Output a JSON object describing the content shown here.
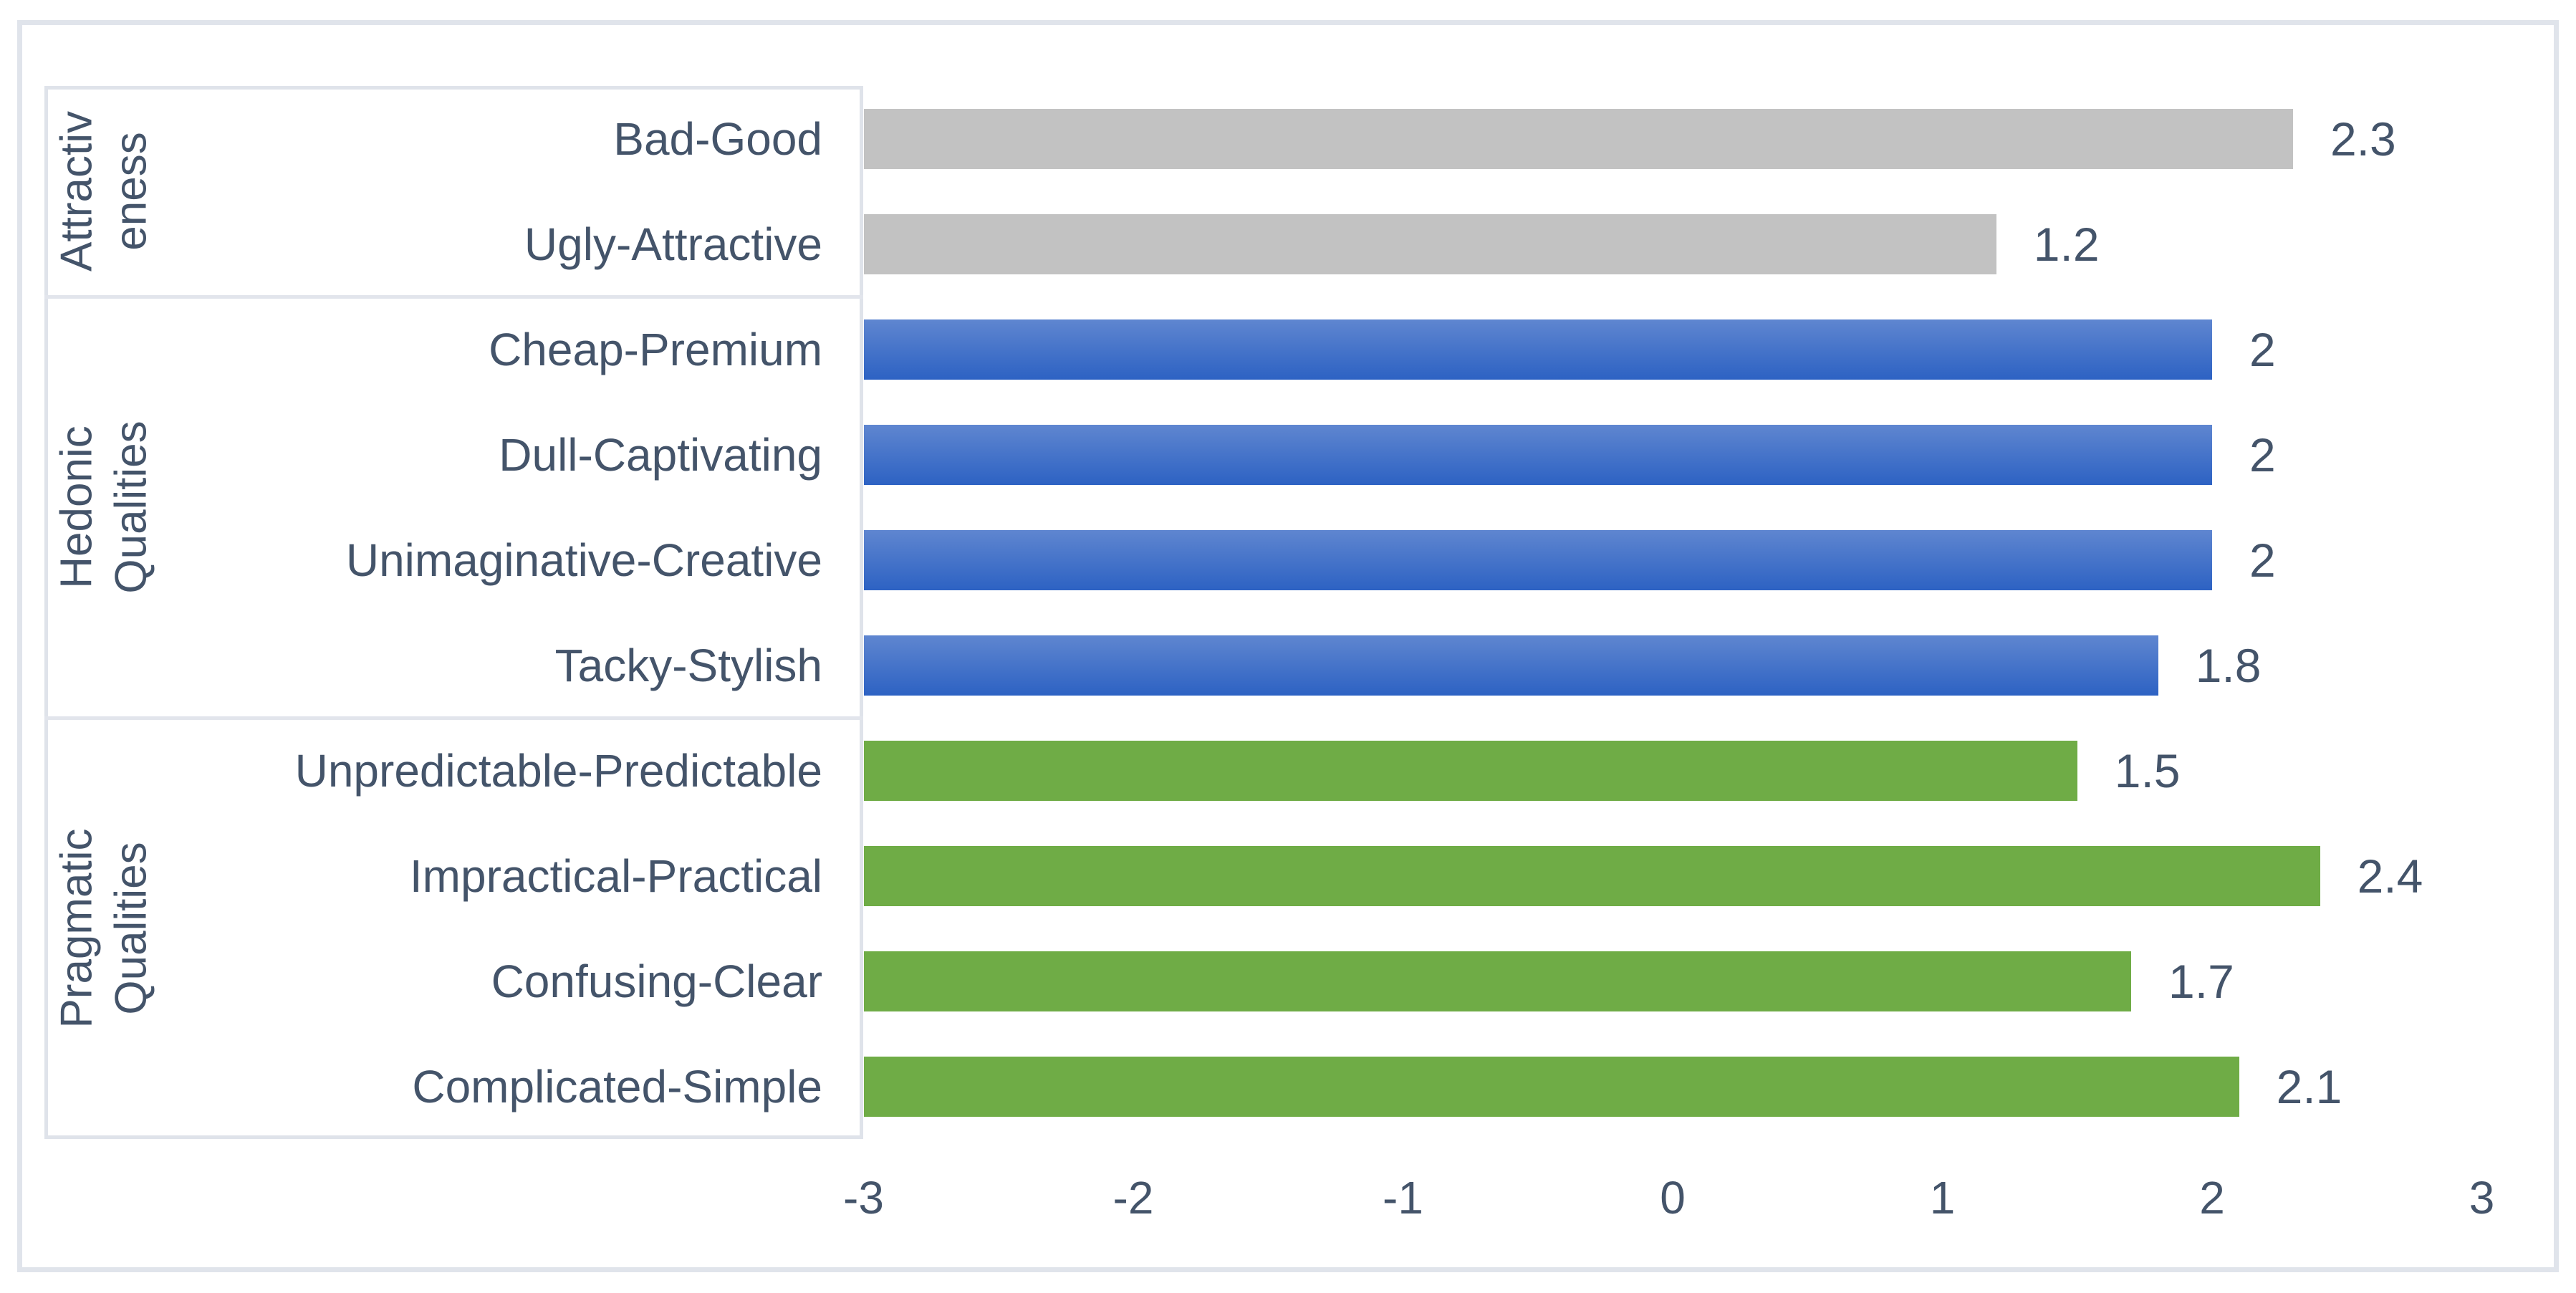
{
  "chart_data": {
    "type": "bar",
    "orientation": "horizontal",
    "title": "",
    "xlabel": "",
    "ylabel": "",
    "xlim": [
      -3,
      3
    ],
    "bar_base": -3,
    "grid": false,
    "legend": false,
    "x_ticks": [
      "-3",
      "-2",
      "-1",
      "0",
      "1",
      "2",
      "3"
    ],
    "text_color": "#44546A",
    "frame_border_color": "#E0E4EB",
    "category_box_border_color": "#DFE3EA",
    "groups": [
      {
        "name": "Attractiveness",
        "rotated_label": "Attractiv\neness",
        "fill": {
          "type": "solid",
          "color": "#C2C2C2"
        },
        "items": [
          {
            "label": "Bad-Good",
            "value": 2.3,
            "value_label": "2.3"
          },
          {
            "label": "Ugly-Attractive",
            "value": 1.2,
            "value_label": "1.2"
          }
        ]
      },
      {
        "name": "Hedonic Qualities",
        "rotated_label": "Hedonic\nQualities",
        "fill": {
          "type": "gradient",
          "from": "#5F86D0",
          "to": "#2D62C3"
        },
        "items": [
          {
            "label": "Cheap-Premium",
            "value": 2,
            "value_label": "2"
          },
          {
            "label": "Dull-Captivating",
            "value": 2,
            "value_label": "2"
          },
          {
            "label": "Unimaginative-Creative",
            "value": 2,
            "value_label": "2"
          },
          {
            "label": "Tacky-Stylish",
            "value": 1.8,
            "value_label": "1.8"
          }
        ]
      },
      {
        "name": "Pragmatic Qualities",
        "rotated_label": "Pragmatic\nQualities",
        "fill": {
          "type": "solid",
          "color": "#6FAC46"
        },
        "items": [
          {
            "label": "Unpredictable-Predictable",
            "value": 1.5,
            "value_label": "1.5"
          },
          {
            "label": "Impractical-Practical",
            "value": 2.4,
            "value_label": "2.4"
          },
          {
            "label": "Confusing-Clear",
            "value": 1.7,
            "value_label": "1.7"
          },
          {
            "label": "Complicated-Simple",
            "value": 2.1,
            "value_label": "2.1"
          }
        ]
      }
    ]
  }
}
